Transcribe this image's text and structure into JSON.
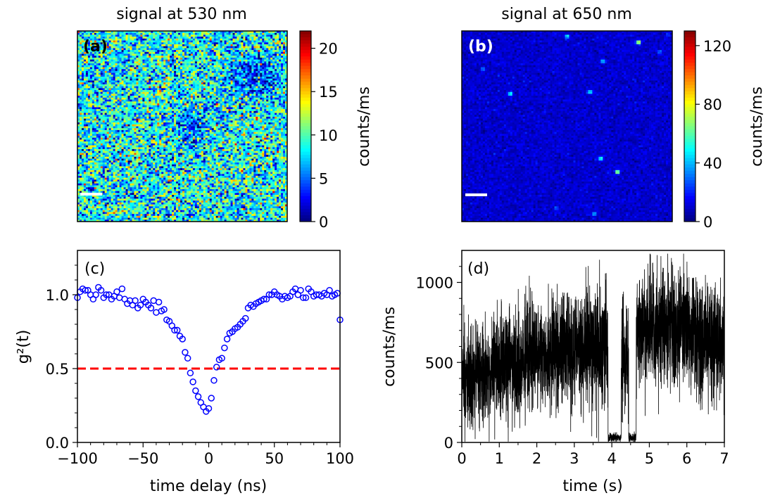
{
  "chart_data": [
    {
      "panel": "(a)",
      "type": "heatmap",
      "title": "signal at 530 nm",
      "colorbar": {
        "label": "counts/ms",
        "range": [
          0,
          22
        ],
        "ticks": [
          0,
          5,
          10,
          15,
          20
        ],
        "tick_labels": [
          "0",
          "5",
          "10",
          "15",
          "20"
        ],
        "colormap": "jet"
      },
      "scale_bar": true,
      "field": {
        "grid": 100,
        "mean": 8.5,
        "noise": 3.6,
        "features": [
          [
            0.84,
            0.23,
            0.07,
            -6
          ],
          [
            0.55,
            0.5,
            0.06,
            -4
          ]
        ]
      }
    },
    {
      "panel": "(b)",
      "type": "heatmap",
      "title": "signal at 650 nm",
      "colorbar": {
        "label": "counts/ms",
        "range": [
          0,
          130
        ],
        "ticks": [
          0,
          40,
          80,
          120
        ],
        "tick_labels": [
          "0",
          "40",
          "80",
          "120"
        ],
        "colormap": "jet"
      },
      "scale_bar": true,
      "field": {
        "grid": 100,
        "mean": 10,
        "noise": 3.5,
        "spots": [
          [
            0.5,
            0.03,
            55
          ],
          [
            0.84,
            0.06,
            95
          ],
          [
            0.1,
            0.2,
            30
          ],
          [
            0.23,
            0.33,
            60
          ],
          [
            0.61,
            0.32,
            50
          ],
          [
            0.67,
            0.16,
            40
          ],
          [
            0.94,
            0.11,
            30
          ],
          [
            0.66,
            0.67,
            55
          ],
          [
            0.74,
            0.74,
            85
          ],
          [
            0.63,
            0.96,
            38
          ],
          [
            0.45,
            0.93,
            25
          ],
          [
            0.98,
            0.02,
            20
          ]
        ]
      }
    },
    {
      "panel": "(c)",
      "type": "scatter",
      "xlabel": "time delay (ns)",
      "ylabel": "g²(t)",
      "xlim": [
        -100,
        100
      ],
      "ylim": [
        0,
        1.3
      ],
      "xticks": [
        -100,
        -50,
        0,
        50,
        100
      ],
      "xtick_labels": [
        "−100",
        "−50",
        "0",
        "50",
        "100"
      ],
      "yticks": [
        0,
        0.5,
        1
      ],
      "ytick_labels": [
        "0.0",
        "0.5",
        "1.0"
      ],
      "marker_color": "#0000ff",
      "reference_line": {
        "y": 0.5,
        "color": "#ff0000",
        "style": "dashed"
      },
      "x": [
        -100,
        -98,
        -96,
        -94,
        -92,
        -90,
        -88,
        -86,
        -84,
        -82,
        -80,
        -78,
        -76,
        -74,
        -72,
        -70,
        -68,
        -66,
        -64,
        -62,
        -60,
        -58,
        -56,
        -54,
        -52,
        -50,
        -48,
        -46,
        -44,
        -42,
        -40,
        -38,
        -36,
        -34,
        -32,
        -30,
        -28,
        -26,
        -24,
        -22,
        -20,
        -18,
        -16,
        -14,
        -12,
        -10,
        -8,
        -6,
        -4,
        -2,
        0,
        2,
        4,
        6,
        8,
        10,
        12,
        14,
        16,
        18,
        20,
        22,
        24,
        26,
        28,
        30,
        32,
        34,
        36,
        38,
        40,
        42,
        44,
        46,
        48,
        50,
        52,
        54,
        56,
        58,
        60,
        62,
        64,
        66,
        68,
        70,
        72,
        74,
        76,
        78,
        80,
        82,
        84,
        86,
        88,
        90,
        92,
        94,
        96,
        98,
        100
      ],
      "y": [
        0.98,
        1.02,
        1.04,
        1.03,
        1.03,
        1.0,
        0.97,
        1.0,
        1.05,
        1.03,
        0.98,
        1.0,
        1.0,
        0.97,
        0.99,
        1.02,
        0.98,
        1.04,
        0.97,
        0.94,
        0.96,
        0.93,
        0.96,
        0.91,
        0.93,
        0.97,
        0.95,
        0.93,
        0.91,
        0.96,
        0.88,
        0.95,
        0.89,
        0.9,
        0.83,
        0.82,
        0.79,
        0.76,
        0.76,
        0.72,
        0.7,
        0.61,
        0.57,
        0.47,
        0.41,
        0.35,
        0.31,
        0.27,
        0.24,
        0.21,
        0.23,
        0.3,
        0.42,
        0.51,
        0.56,
        0.57,
        0.64,
        0.7,
        0.74,
        0.75,
        0.77,
        0.78,
        0.8,
        0.82,
        0.84,
        0.91,
        0.93,
        0.92,
        0.94,
        0.95,
        0.96,
        0.97,
        0.97,
        1.0,
        1.0,
        1.02,
        1.0,
        0.99,
        0.97,
        0.99,
        0.98,
        0.99,
        1.02,
        1.04,
        1.0,
        1.03,
        0.98,
        0.98,
        1.04,
        1.02,
        0.99,
        1.0,
        1.0,
        0.99,
        1.01,
        1.0,
        1.03,
        0.99,
        1.0,
        1.01,
        0.83
      ]
    },
    {
      "panel": "(d)",
      "type": "line",
      "xlabel": "time (s)",
      "ylabel": "counts/ms",
      "xlim": [
        0,
        7
      ],
      "ylim": [
        0,
        1200
      ],
      "xticks": [
        0,
        1,
        2,
        3,
        4,
        5,
        6,
        7
      ],
      "xtick_labels": [
        "0",
        "1",
        "2",
        "3",
        "4",
        "5",
        "6",
        "7"
      ],
      "yticks": [
        0,
        500,
        1000
      ],
      "ytick_labels": [
        "0",
        "500",
        "1000"
      ],
      "line_color": "#000000",
      "samples_per_second": 500,
      "segments": [
        {
          "t": [
            0.0,
            0.8
          ],
          "mean": 420,
          "sd": 150
        },
        {
          "t": [
            0.8,
            1.8
          ],
          "mean": 500,
          "sd": 160
        },
        {
          "t": [
            1.8,
            3.0
          ],
          "mean": 560,
          "sd": 170
        },
        {
          "t": [
            3.0,
            3.9
          ],
          "mean": 600,
          "sd": 180
        },
        {
          "t": [
            3.9,
            4.25
          ],
          "mean": 30,
          "sd": 15
        },
        {
          "t": [
            4.25,
            4.45
          ],
          "mean": 500,
          "sd": 160
        },
        {
          "t": [
            4.45,
            4.65
          ],
          "mean": 30,
          "sd": 15
        },
        {
          "t": [
            4.65,
            5.3
          ],
          "mean": 690,
          "sd": 180
        },
        {
          "t": [
            5.3,
            6.3
          ],
          "mean": 720,
          "sd": 180
        },
        {
          "t": [
            6.3,
            7.0
          ],
          "mean": 650,
          "sd": 180
        }
      ]
    }
  ]
}
